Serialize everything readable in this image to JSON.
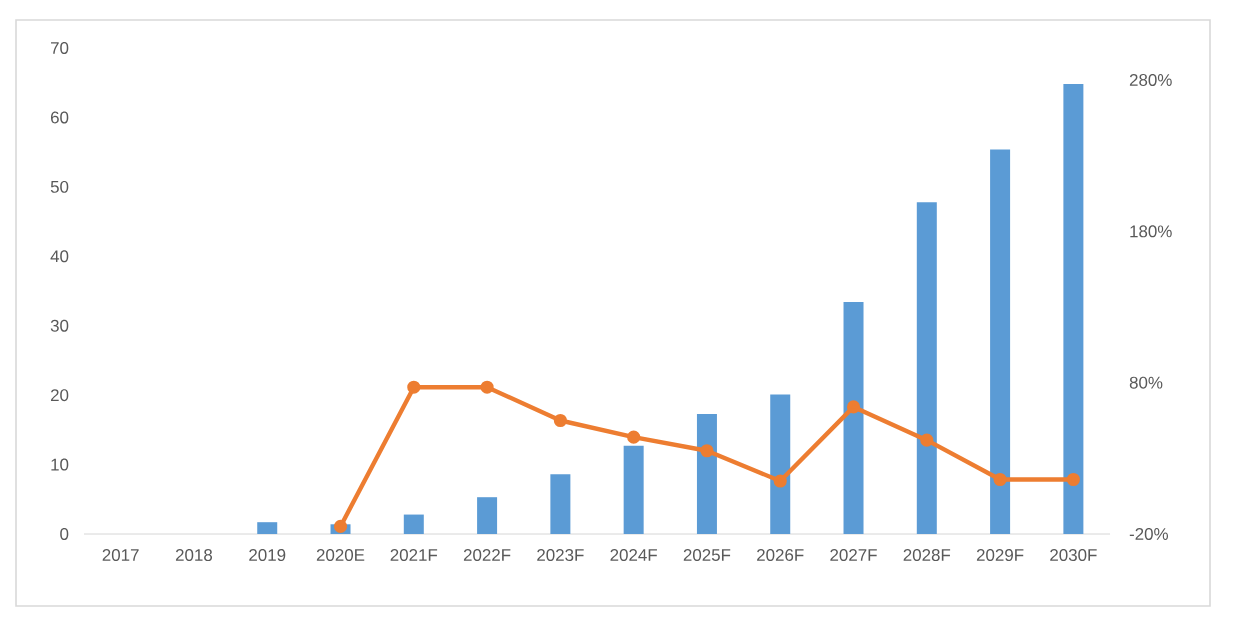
{
  "chart_data": {
    "type": "bar",
    "categories": [
      "2017",
      "2018",
      "2019",
      "2020E",
      "2021F",
      "2022F",
      "2023F",
      "2024F",
      "2025F",
      "2026F",
      "2027F",
      "2028F",
      "2029F",
      "2030F"
    ],
    "series": [
      {
        "color": "#5b9bd5",
        "values": [
          0,
          0,
          1.7,
          1.4,
          2.8,
          5.3,
          8.6,
          12.7,
          17.3,
          20.1,
          33.4,
          47.8,
          55.4,
          64.8
        ]
      },
      {
        "type": "line",
        "axis": "y2",
        "color": "#ed7d31",
        "values": [
          null,
          null,
          null,
          -15,
          77,
          77,
          55,
          44,
          35,
          15,
          64,
          42,
          16,
          16
        ]
      }
    ],
    "ylim": [
      0,
      70
    ],
    "yticks": [
      0,
      10,
      20,
      30,
      40,
      50,
      60,
      70
    ],
    "y2lim": [
      -20,
      280
    ],
    "y2ticks": [
      {
        "value": -20,
        "label": "-20%"
      },
      {
        "value": 80,
        "label": "80%"
      },
      {
        "value": 180,
        "label": "180%"
      },
      {
        "value": 280,
        "label": "280%"
      }
    ],
    "marker": "circle",
    "line_style": "solid"
  }
}
